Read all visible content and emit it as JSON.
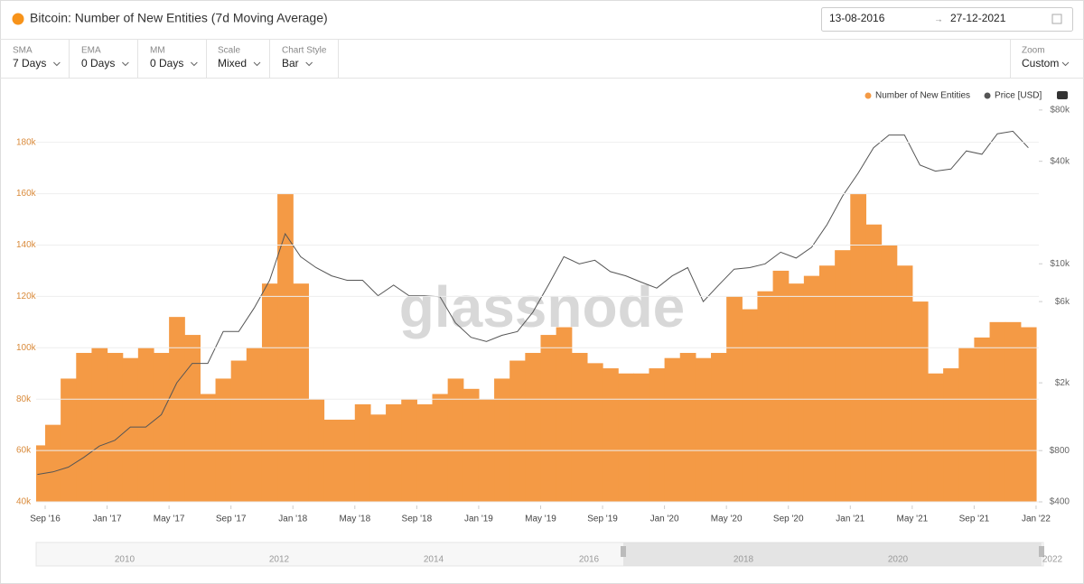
{
  "header": {
    "title": "Bitcoin: Number of New Entities (7d Moving Average)",
    "date_from": "13-08-2016",
    "date_separator": "→",
    "date_to": "27-12-2021"
  },
  "toolbar": [
    {
      "label": "SMA",
      "value": "7 Days"
    },
    {
      "label": "EMA",
      "value": "0 Days"
    },
    {
      "label": "MM",
      "value": "0 Days"
    },
    {
      "label": "Scale",
      "value": "Mixed"
    },
    {
      "label": "Chart Style",
      "value": "Bar"
    }
  ],
  "zoom": {
    "label": "Zoom",
    "value": "Custom"
  },
  "chart_data": {
    "type": "bar",
    "watermark": "glassnode",
    "x": [
      "2016-08",
      "2016-09",
      "2016-10",
      "2016-11",
      "2016-12",
      "2017-01",
      "2017-02",
      "2017-03",
      "2017-04",
      "2017-05",
      "2017-06",
      "2017-07",
      "2017-08",
      "2017-09",
      "2017-10",
      "2017-11",
      "2017-12",
      "2018-01",
      "2018-02",
      "2018-03",
      "2018-04",
      "2018-05",
      "2018-06",
      "2018-07",
      "2018-08",
      "2018-09",
      "2018-10",
      "2018-11",
      "2018-12",
      "2019-01",
      "2019-02",
      "2019-03",
      "2019-04",
      "2019-05",
      "2019-06",
      "2019-07",
      "2019-08",
      "2019-09",
      "2019-10",
      "2019-11",
      "2019-12",
      "2020-01",
      "2020-02",
      "2020-03",
      "2020-04",
      "2020-05",
      "2020-06",
      "2020-07",
      "2020-08",
      "2020-09",
      "2020-10",
      "2020-11",
      "2020-12",
      "2021-01",
      "2021-02",
      "2021-03",
      "2021-04",
      "2021-05",
      "2021-06",
      "2021-07",
      "2021-08",
      "2021-09",
      "2021-10",
      "2021-11",
      "2021-12"
    ],
    "series": [
      {
        "name": "Number of New Entities",
        "type": "bar",
        "color": "#f49a45",
        "values": [
          62000,
          70000,
          88000,
          98000,
          100000,
          98000,
          96000,
          100000,
          98000,
          112000,
          105000,
          82000,
          88000,
          95000,
          100000,
          125000,
          160000,
          125000,
          80000,
          72000,
          72000,
          78000,
          74000,
          78000,
          80000,
          78000,
          82000,
          88000,
          84000,
          80000,
          88000,
          95000,
          98000,
          105000,
          108000,
          98000,
          94000,
          92000,
          90000,
          90000,
          92000,
          96000,
          98000,
          96000,
          98000,
          120000,
          115000,
          122000,
          130000,
          125000,
          128000,
          132000,
          138000,
          160000,
          148000,
          140000,
          132000,
          118000,
          90000,
          92000,
          100000,
          104000,
          110000,
          110000,
          108000
        ]
      },
      {
        "name": "Price [USD]",
        "type": "line",
        "axis": "y2",
        "color": "#555555",
        "values": [
          580,
          600,
          640,
          730,
          850,
          920,
          1100,
          1100,
          1300,
          2000,
          2600,
          2600,
          4000,
          4000,
          5500,
          8000,
          15000,
          11000,
          9500,
          8500,
          8000,
          8000,
          6500,
          7500,
          6500,
          6500,
          6400,
          4500,
          3700,
          3500,
          3800,
          4000,
          5200,
          7500,
          11000,
          10000,
          10500,
          9000,
          8500,
          7800,
          7200,
          8500,
          9500,
          6000,
          7500,
          9300,
          9500,
          10000,
          11700,
          10800,
          12500,
          17000,
          25000,
          34000,
          48000,
          57000,
          57000,
          38000,
          35000,
          36000,
          46000,
          44000,
          58000,
          60000,
          48000
        ]
      }
    ],
    "ylim": [
      40000,
      195000
    ],
    "yticks": [
      {
        "value": 40000,
        "label": "40k"
      },
      {
        "value": 60000,
        "label": "60k"
      },
      {
        "value": 80000,
        "label": "80k"
      },
      {
        "value": 100000,
        "label": "100k"
      },
      {
        "value": 120000,
        "label": "120k"
      },
      {
        "value": 140000,
        "label": "140k"
      },
      {
        "value": 160000,
        "label": "160k"
      },
      {
        "value": 180000,
        "label": "180k"
      }
    ],
    "y2lim": [
      400,
      87000
    ],
    "y2scale": "log",
    "y2ticks": [
      {
        "value": 400,
        "label": "$400"
      },
      {
        "value": 800,
        "label": "$800"
      },
      {
        "value": 2000,
        "label": "$2k"
      },
      {
        "value": 6000,
        "label": "$6k"
      },
      {
        "value": 10000,
        "label": "$10k"
      },
      {
        "value": 40000,
        "label": "$40k"
      },
      {
        "value": 80000,
        "label": "$80k"
      }
    ],
    "xticks": [
      {
        "value": "2016-09",
        "label": "Sep '16"
      },
      {
        "value": "2017-01",
        "label": "Jan '17"
      },
      {
        "value": "2017-05",
        "label": "May '17"
      },
      {
        "value": "2017-09",
        "label": "Sep '17"
      },
      {
        "value": "2018-01",
        "label": "Jan '18"
      },
      {
        "value": "2018-05",
        "label": "May '18"
      },
      {
        "value": "2018-09",
        "label": "Sep '18"
      },
      {
        "value": "2019-01",
        "label": "Jan '19"
      },
      {
        "value": "2019-05",
        "label": "May '19"
      },
      {
        "value": "2019-09",
        "label": "Sep '19"
      },
      {
        "value": "2020-01",
        "label": "Jan '20"
      },
      {
        "value": "2020-05",
        "label": "May '20"
      },
      {
        "value": "2020-09",
        "label": "Sep '20"
      },
      {
        "value": "2021-01",
        "label": "Jan '21"
      },
      {
        "value": "2021-05",
        "label": "May '21"
      },
      {
        "value": "2021-09",
        "label": "Sep '21"
      },
      {
        "value": "2022-01",
        "label": "Jan '22"
      }
    ],
    "grid": true,
    "legend": "top-right"
  },
  "navigator": {
    "labels": [
      "2010",
      "2012",
      "2014",
      "2016",
      "2018",
      "2020",
      "2022"
    ]
  }
}
